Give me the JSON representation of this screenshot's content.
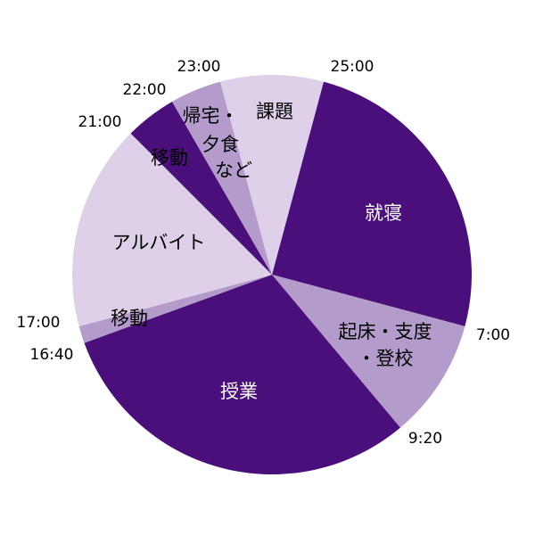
{
  "chart_data": {
    "type": "pie",
    "categories": [
      [
        "就寝"
      ],
      [
        "起床・支度",
        "・登校"
      ],
      [
        "授業"
      ],
      [
        "移動"
      ],
      [
        "アルバイト"
      ],
      [
        "移動"
      ],
      [
        "帰宅・",
        "夕食",
        "など"
      ],
      [
        "課題"
      ]
    ],
    "values": [
      360,
      140,
      440,
      20,
      240,
      60,
      60,
      120
    ],
    "colors": [
      "#4b0f7b",
      "#b39ccb",
      "#4b0f7b",
      "#b39ccb",
      "#ddd0e8",
      "#4b0f7b",
      "#b39ccb",
      "#ddd0e8"
    ],
    "label_colors": [
      "#ffffff",
      "#000000",
      "#ffffff",
      "#000000",
      "#000000",
      "#000000",
      "#000000",
      "#000000"
    ],
    "boundary_labels": [
      "25:00",
      "7:00",
      "9:20",
      "16:40",
      "17:00",
      "21:00",
      "22:00",
      "23:00"
    ]
  }
}
